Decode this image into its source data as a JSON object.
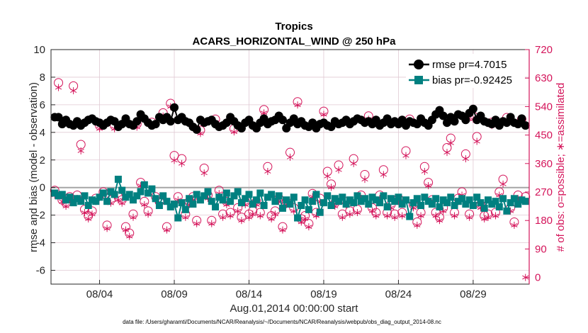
{
  "chart_data": {
    "type": "line",
    "title": "Tropics",
    "subtitle": "ACARS_HORIZONTAL_WIND @ 250 hPa",
    "xlabel": "Aug.01,2014 00:00:00 start",
    "ylabel": "rmse and bias (model - observation)",
    "ylabel_right": "# of obs: o=possible; ∗=assimilated",
    "footnote": "data file: /Users/gharamti/Documents/NCAR/Reanalysis/~/Documents/NCAR/Reanalysis/webpub/obs_diag_output_2014-08.nc",
    "xlim": [
      0.75,
      32.75
    ],
    "ylim": [
      -7,
      10
    ],
    "ylim_right": [
      -21,
      720
    ],
    "x_ticks": [
      4,
      9,
      14,
      19,
      24,
      29
    ],
    "x_tick_labels": [
      "08/04",
      "08/09",
      "08/14",
      "08/19",
      "08/24",
      "08/29"
    ],
    "y_ticks": [
      -6,
      -4,
      -2,
      0,
      2,
      4,
      6,
      8,
      10
    ],
    "y_tick_labels": [
      "-6",
      "-4",
      "-2",
      "0",
      "2",
      "4",
      "6",
      "8",
      "10"
    ],
    "y_ticks_right": [
      0,
      90,
      180,
      270,
      360,
      450,
      540,
      630,
      720
    ],
    "y_tick_labels_right": [
      "0",
      "90",
      "180",
      "270",
      "360",
      "450",
      "540",
      "630",
      "720"
    ],
    "legend_position": "top-right",
    "colors": {
      "rmse": "#000000",
      "bias": "#008080",
      "obs": "#d4145a",
      "zero_line": "#a6a6a6",
      "grid": "#e0c9d3"
    },
    "series": [
      {
        "name": "rmse pr=4.7015",
        "marker": "circle",
        "x": [
          1.0,
          1.25,
          1.5,
          1.75,
          2.0,
          2.25,
          2.5,
          2.75,
          3.0,
          3.25,
          3.5,
          3.75,
          4.0,
          4.25,
          4.5,
          4.75,
          5.0,
          5.25,
          5.5,
          5.75,
          6.0,
          6.25,
          6.5,
          6.75,
          7.0,
          7.25,
          7.5,
          7.75,
          8.0,
          8.25,
          8.5,
          8.75,
          9.0,
          9.25,
          9.5,
          9.75,
          10.0,
          10.25,
          10.5,
          10.75,
          11.0,
          11.25,
          11.5,
          11.75,
          12.0,
          12.25,
          12.5,
          12.75,
          13.0,
          13.25,
          13.5,
          13.75,
          14.0,
          14.25,
          14.5,
          14.75,
          15.0,
          15.25,
          15.5,
          15.75,
          16.0,
          16.25,
          16.5,
          16.75,
          17.0,
          17.25,
          17.5,
          17.75,
          18.0,
          18.25,
          18.5,
          18.75,
          19.0,
          19.25,
          19.5,
          19.75,
          20.0,
          20.25,
          20.5,
          20.75,
          21.0,
          21.25,
          21.5,
          21.75,
          22.0,
          22.25,
          22.5,
          22.75,
          23.0,
          23.25,
          23.5,
          23.75,
          24.0,
          24.25,
          24.5,
          24.75,
          25.0,
          25.25,
          25.5,
          25.75,
          26.0,
          26.25,
          26.5,
          26.75,
          27.0,
          27.25,
          27.5,
          27.75,
          28.0,
          28.25,
          28.5,
          28.75,
          29.0,
          29.25,
          29.5,
          29.75,
          30.0,
          30.25,
          30.5,
          30.75,
          31.0,
          31.25,
          31.5,
          31.75,
          32.0,
          32.25,
          32.5
        ],
        "values": [
          5.1,
          5.1,
          4.6,
          4.9,
          4.6,
          4.5,
          4.8,
          4.5,
          4.7,
          4.9,
          5.0,
          4.8,
          4.7,
          4.5,
          4.7,
          4.9,
          4.8,
          4.4,
          4.6,
          5.0,
          4.6,
          4.5,
          4.8,
          5.3,
          5.0,
          4.7,
          4.5,
          4.6,
          5.1,
          4.9,
          5.1,
          4.8,
          5.8,
          4.9,
          5.1,
          4.8,
          4.7,
          4.4,
          4.2,
          4.9,
          4.7,
          4.8,
          4.9,
          4.6,
          4.4,
          4.5,
          4.7,
          5.1,
          4.8,
          4.5,
          4.3,
          4.7,
          4.9,
          4.5,
          4.3,
          4.7,
          5.0,
          4.6,
          4.8,
          4.9,
          5.2,
          4.9,
          4.3,
          4.7,
          5.0,
          4.6,
          4.8,
          4.5,
          4.4,
          4.7,
          4.3,
          4.6,
          4.7,
          4.5,
          4.4,
          4.8,
          4.6,
          4.7,
          4.9,
          4.6,
          4.8,
          5.0,
          4.9,
          4.7,
          4.8,
          4.6,
          4.9,
          4.5,
          4.7,
          5.0,
          4.6,
          4.8,
          4.6,
          4.9,
          4.5,
          4.8,
          4.7,
          4.6,
          5.0,
          4.7,
          4.5,
          4.9,
          5.3,
          5.6,
          5.2,
          4.7,
          5.1,
          4.8,
          5.3,
          5.2,
          4.9,
          5.4,
          5.7,
          4.9,
          5.2,
          4.8,
          4.7,
          4.6,
          4.9,
          4.5,
          4.8,
          4.7,
          5.1,
          4.7,
          4.6,
          5.0,
          4.5
        ]
      },
      {
        "name": "bias pr=-0.92425",
        "marker": "square",
        "x": [
          1.0,
          1.25,
          1.5,
          1.75,
          2.0,
          2.25,
          2.5,
          2.75,
          3.0,
          3.25,
          3.5,
          3.75,
          4.0,
          4.25,
          4.5,
          4.75,
          5.0,
          5.25,
          5.5,
          5.75,
          6.0,
          6.25,
          6.5,
          6.75,
          7.0,
          7.25,
          7.5,
          7.75,
          8.0,
          8.25,
          8.5,
          8.75,
          9.0,
          9.25,
          9.5,
          9.75,
          10.0,
          10.25,
          10.5,
          10.75,
          11.0,
          11.25,
          11.5,
          11.75,
          12.0,
          12.25,
          12.5,
          12.75,
          13.0,
          13.25,
          13.5,
          13.75,
          14.0,
          14.25,
          14.5,
          14.75,
          15.0,
          15.25,
          15.5,
          15.75,
          16.0,
          16.25,
          16.5,
          16.75,
          17.0,
          17.25,
          17.5,
          17.75,
          18.0,
          18.25,
          18.5,
          18.75,
          19.0,
          19.25,
          19.5,
          19.75,
          20.0,
          20.25,
          20.5,
          20.75,
          21.0,
          21.25,
          21.5,
          21.75,
          22.0,
          22.25,
          22.5,
          22.75,
          23.0,
          23.25,
          23.5,
          23.75,
          24.0,
          24.25,
          24.5,
          24.75,
          25.0,
          25.25,
          25.5,
          25.75,
          26.0,
          26.25,
          26.5,
          26.75,
          27.0,
          27.25,
          27.5,
          27.75,
          28.0,
          28.25,
          28.5,
          28.75,
          29.0,
          29.25,
          29.5,
          29.75,
          30.0,
          30.25,
          30.5,
          30.75,
          31.0,
          31.25,
          31.5,
          31.75,
          32.0,
          32.25,
          32.5
        ],
        "values": [
          -0.4,
          -0.6,
          -0.5,
          -0.9,
          -0.7,
          -1.1,
          -0.8,
          -1.0,
          -0.6,
          -1.3,
          -0.9,
          -1.0,
          -0.7,
          -0.4,
          -1.0,
          -0.3,
          -0.5,
          0.6,
          -0.2,
          -0.7,
          -0.5,
          -0.9,
          -0.6,
          -0.3,
          0.2,
          -0.4,
          -0.1,
          -0.8,
          -1.3,
          -0.6,
          -1.0,
          -1.4,
          -1.2,
          -2.2,
          -1.1,
          -1.6,
          -0.8,
          -1.2,
          -0.5,
          -0.9,
          -0.6,
          -0.3,
          -1.0,
          -1.4,
          -0.7,
          -0.9,
          -0.4,
          -1.0,
          -0.6,
          -0.3,
          -1.1,
          -0.8,
          -0.5,
          -1.2,
          -0.9,
          -0.4,
          -1.3,
          -0.7,
          -0.5,
          -1.0,
          -0.6,
          -1.5,
          -0.9,
          -1.2,
          -0.7,
          -2.2,
          -1.3,
          -0.9,
          -1.6,
          -1.0,
          -0.5,
          -1.8,
          -1.1,
          -0.6,
          -1.3,
          -0.8,
          -1.0,
          -0.7,
          -1.2,
          -0.9,
          -1.1,
          -0.6,
          -1.0,
          -0.8,
          -1.2,
          -0.7,
          -0.9,
          -1.1,
          -0.6,
          -1.4,
          -0.8,
          -1.0,
          -0.7,
          -1.2,
          -0.9,
          -2.1,
          -1.1,
          -0.8,
          -1.3,
          -0.7,
          -1.0,
          -1.2,
          -0.8,
          -1.4,
          -0.9,
          -1.1,
          -0.7,
          -1.3,
          -1.0,
          -0.8,
          -1.2,
          -0.9,
          -1.3,
          -0.7,
          -1.1,
          -1.5,
          -0.9,
          -1.2,
          -1.0,
          -1.4,
          -0.8,
          -1.7,
          -1.1,
          -0.8,
          -1.2,
          -0.9,
          -1.0
        ]
      },
      {
        "name": "possible",
        "marker": "open-circle",
        "axis": "right",
        "x": [
          1.0,
          1.25,
          1.5,
          1.75,
          2.0,
          2.25,
          2.5,
          2.75,
          3.0,
          3.25,
          3.5,
          3.75,
          4.0,
          4.25,
          4.5,
          4.75,
          5.0,
          5.25,
          5.5,
          5.75,
          6.0,
          6.25,
          6.5,
          6.75,
          7.0,
          7.25,
          7.5,
          7.75,
          8.0,
          8.25,
          8.5,
          8.75,
          9.0,
          9.25,
          9.5,
          9.75,
          10.0,
          10.25,
          10.5,
          10.75,
          11.0,
          11.25,
          11.5,
          11.75,
          12.0,
          12.25,
          12.5,
          12.75,
          13.0,
          13.25,
          13.5,
          13.75,
          14.0,
          14.25,
          14.5,
          14.75,
          15.0,
          15.25,
          15.5,
          15.75,
          16.0,
          16.25,
          16.5,
          16.75,
          17.0,
          17.25,
          17.5,
          17.75,
          18.0,
          18.25,
          18.5,
          18.75,
          19.0,
          19.25,
          19.5,
          19.75,
          20.0,
          20.25,
          20.5,
          20.75,
          21.0,
          21.25,
          21.5,
          21.75,
          22.0,
          22.25,
          22.5,
          22.75,
          23.0,
          23.25,
          23.5,
          23.75,
          24.0,
          24.25,
          24.5,
          24.75,
          25.0,
          25.25,
          25.5,
          25.75,
          26.0,
          26.25,
          26.5,
          26.75,
          27.0,
          27.25,
          27.5,
          27.75,
          28.0,
          28.25,
          28.5,
          28.75,
          29.0,
          29.25,
          29.5,
          29.75,
          30.0,
          30.25,
          30.5,
          30.75,
          31.0,
          31.25,
          31.5,
          31.75,
          32.0,
          32.25,
          32.5
        ],
        "values": [
          275,
          615,
          245,
          235,
          255,
          605,
          260,
          420,
          215,
          195,
          210,
          250,
          480,
          270,
          165,
          245,
          480,
          255,
          245,
          160,
          140,
          200,
          485,
          300,
          240,
          210,
          490,
          255,
          240,
          520,
          160,
          550,
          385,
          255,
          375,
          200,
          240,
          255,
          180,
          465,
          345,
          260,
          180,
          500,
          275,
          200,
          240,
          205,
          470,
          220,
          190,
          240,
          200,
          210,
          240,
          205,
          530,
          350,
          195,
          210,
          250,
          160,
          240,
          395,
          220,
          555,
          185,
          195,
          170,
          265,
          205,
          250,
          525,
          335,
          295,
          235,
          355,
          200,
          240,
          210,
          375,
          215,
          260,
          325,
          510,
          220,
          205,
          260,
          340,
          205,
          230,
          200,
          250,
          205,
          400,
          500,
          230,
          175,
          205,
          350,
          300,
          245,
          205,
          190,
          220,
          410,
          440,
          205,
          250,
          270,
          390,
          200,
          510,
          445,
          230,
          195,
          200,
          490,
          205,
          270,
          310,
          505,
          220,
          175,
          260,
          500,
          255
        ]
      },
      {
        "name": "assimilated",
        "marker": "asterisk",
        "axis": "right",
        "x": [
          1.0,
          1.25,
          1.5,
          1.75,
          2.0,
          2.25,
          2.5,
          2.75,
          3.0,
          3.25,
          3.5,
          3.75,
          4.0,
          4.25,
          4.5,
          4.75,
          5.0,
          5.25,
          5.5,
          5.75,
          6.0,
          6.25,
          6.5,
          6.75,
          7.0,
          7.25,
          7.5,
          7.75,
          8.0,
          8.25,
          8.5,
          8.75,
          9.0,
          9.25,
          9.5,
          9.75,
          10.0,
          10.25,
          10.5,
          10.75,
          11.0,
          11.25,
          11.5,
          11.75,
          12.0,
          12.25,
          12.5,
          12.75,
          13.0,
          13.25,
          13.5,
          13.75,
          14.0,
          14.25,
          14.5,
          14.75,
          15.0,
          15.25,
          15.5,
          15.75,
          16.0,
          16.25,
          16.5,
          16.75,
          17.0,
          17.25,
          17.5,
          17.75,
          18.0,
          18.25,
          18.5,
          18.75,
          19.0,
          19.25,
          19.5,
          19.75,
          20.0,
          20.25,
          20.5,
          20.75,
          21.0,
          21.25,
          21.5,
          21.75,
          22.0,
          22.25,
          22.5,
          22.75,
          23.0,
          23.25,
          23.5,
          23.75,
          24.0,
          24.25,
          24.5,
          24.75,
          25.0,
          25.25,
          25.5,
          25.75,
          26.0,
          26.25,
          26.5,
          26.75,
          27.0,
          27.25,
          27.5,
          27.75,
          28.0,
          28.25,
          28.5,
          28.75,
          29.0,
          29.25,
          29.5,
          29.75,
          30.0,
          30.25,
          30.5,
          30.75,
          31.0,
          31.25,
          31.5,
          31.75,
          32.0,
          32.25,
          32.5
        ],
        "values": [
          260,
          600,
          240,
          225,
          245,
          590,
          250,
          400,
          205,
          185,
          200,
          240,
          470,
          260,
          155,
          235,
          470,
          245,
          235,
          150,
          130,
          190,
          475,
          290,
          230,
          200,
          480,
          245,
          230,
          510,
          150,
          540,
          370,
          245,
          360,
          190,
          230,
          245,
          170,
          455,
          330,
          250,
          170,
          490,
          265,
          190,
          230,
          195,
          460,
          210,
          180,
          230,
          190,
          200,
          230,
          195,
          520,
          335,
          185,
          200,
          240,
          150,
          230,
          380,
          210,
          545,
          175,
          185,
          160,
          255,
          195,
          240,
          515,
          320,
          285,
          225,
          340,
          190,
          230,
          200,
          360,
          205,
          250,
          310,
          500,
          210,
          195,
          250,
          325,
          195,
          220,
          190,
          240,
          195,
          385,
          490,
          220,
          165,
          195,
          335,
          290,
          235,
          195,
          180,
          210,
          395,
          425,
          195,
          240,
          260,
          375,
          190,
          500,
          430,
          220,
          185,
          190,
          480,
          195,
          260,
          295,
          495,
          210,
          165,
          250,
          490,
          0
        ]
      }
    ]
  }
}
